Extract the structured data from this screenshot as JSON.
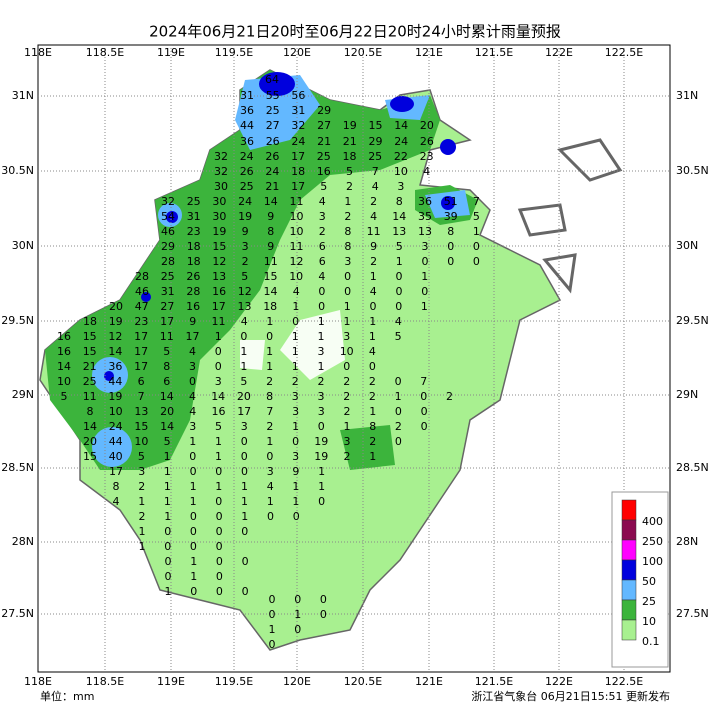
{
  "title": "2024年06月21日20时至06月22日20时24小时累计雨量预报",
  "xticks": [
    "118E",
    "118.5E",
    "119E",
    "119.5E",
    "120E",
    "120.5E",
    "121E",
    "121.5E",
    "122E",
    "122.5E"
  ],
  "yticks": [
    "31N",
    "30.5N",
    "30N",
    "29.5N",
    "29N",
    "28.5N",
    "28N",
    "27.5N"
  ],
  "legend": {
    "labels": [
      "400",
      "250",
      "100",
      "50",
      "25",
      "10",
      "0.1"
    ],
    "colors": [
      "#ff0000",
      "#8b0a50",
      "#ff00ff",
      "#0000dd",
      "#63b8ff",
      "#3cb43c",
      "#a8f090"
    ]
  },
  "unit": "单位：mm",
  "footer": "浙江省气象台 06月21日15:51 更新发布",
  "stations": {
    "rows": [
      [
        64
      ],
      [
        31,
        55,
        56
      ],
      [
        36,
        25,
        31,
        29
      ],
      [
        44,
        27,
        32,
        27,
        19,
        15,
        14,
        20
      ],
      [
        36,
        26,
        24,
        21,
        21,
        29,
        24,
        26
      ],
      [
        32,
        24,
        26,
        17,
        25,
        18,
        25,
        22,
        23
      ],
      [
        32,
        26,
        24,
        18,
        16,
        5,
        7,
        10,
        4
      ],
      [
        30,
        25,
        21,
        17,
        5,
        2,
        4,
        3
      ],
      [
        32,
        25,
        30,
        24,
        14,
        11,
        4,
        1,
        2,
        8,
        36,
        51,
        7
      ],
      [
        54,
        31,
        30,
        19,
        9,
        10,
        3,
        2,
        4,
        14,
        35,
        39,
        5
      ],
      [
        46,
        23,
        19,
        9,
        8,
        10,
        2,
        8,
        11,
        13,
        13,
        8,
        1
      ],
      [
        29,
        18,
        15,
        3,
        9,
        11,
        6,
        8,
        9,
        5,
        3,
        0,
        0
      ],
      [
        28,
        18,
        12,
        2,
        11,
        12,
        6,
        3,
        2,
        1,
        0,
        0,
        0
      ],
      [
        28,
        25,
        26,
        13,
        5,
        15,
        10,
        4,
        0,
        1,
        0,
        1
      ],
      [
        46,
        31,
        28,
        16,
        12,
        14,
        4,
        0,
        0,
        4,
        0,
        0
      ],
      [
        20,
        47,
        27,
        16,
        17,
        13,
        18,
        1,
        0,
        1,
        0,
        0,
        1
      ],
      [
        18,
        19,
        23,
        17,
        9,
        11,
        4,
        1,
        0,
        1,
        1,
        1,
        4
      ],
      [
        16,
        15,
        12,
        17,
        11,
        17,
        1,
        0,
        0,
        1,
        1,
        3,
        1,
        5
      ],
      [
        16,
        15,
        14,
        17,
        5,
        4,
        0,
        1,
        1,
        1,
        3,
        10,
        4
      ],
      [
        14,
        21,
        36,
        17,
        8,
        3,
        0,
        1,
        1,
        1,
        1,
        0,
        0
      ],
      [
        10,
        25,
        44,
        6,
        6,
        0,
        3,
        5,
        2,
        2,
        2,
        2,
        2,
        0,
        7
      ],
      [
        5,
        11,
        19,
        7,
        14,
        4,
        14,
        20,
        8,
        3,
        3,
        2,
        2,
        1,
        0,
        2
      ],
      [
        8,
        10,
        13,
        20,
        4,
        16,
        17,
        7,
        3,
        3,
        2,
        1,
        0,
        0
      ],
      [
        14,
        24,
        15,
        14,
        3,
        5,
        3,
        2,
        1,
        0,
        1,
        8,
        2,
        0
      ],
      [
        20,
        44,
        10,
        5,
        1,
        1,
        0,
        1,
        0,
        19,
        3,
        2,
        0
      ],
      [
        15,
        40,
        5,
        1,
        0,
        1,
        0,
        0,
        3,
        19,
        2,
        1
      ],
      [
        17,
        3,
        1,
        0,
        0,
        0,
        3,
        9,
        1
      ],
      [
        8,
        2,
        1,
        1,
        1,
        1,
        4,
        1,
        1
      ],
      [
        4,
        1,
        1,
        1,
        0,
        1,
        1,
        1,
        0
      ],
      [
        2,
        1,
        0,
        0,
        1,
        0,
        0
      ],
      [
        1,
        0,
        0,
        0,
        0
      ],
      [
        1,
        0,
        0,
        0
      ],
      [
        0,
        1,
        0,
        0
      ],
      [
        0,
        1,
        0
      ],
      [
        1,
        0,
        0,
        0
      ],
      [
        0,
        0,
        0
      ],
      [
        0,
        1,
        0
      ],
      [
        1,
        0
      ],
      [
        0
      ]
    ]
  }
}
